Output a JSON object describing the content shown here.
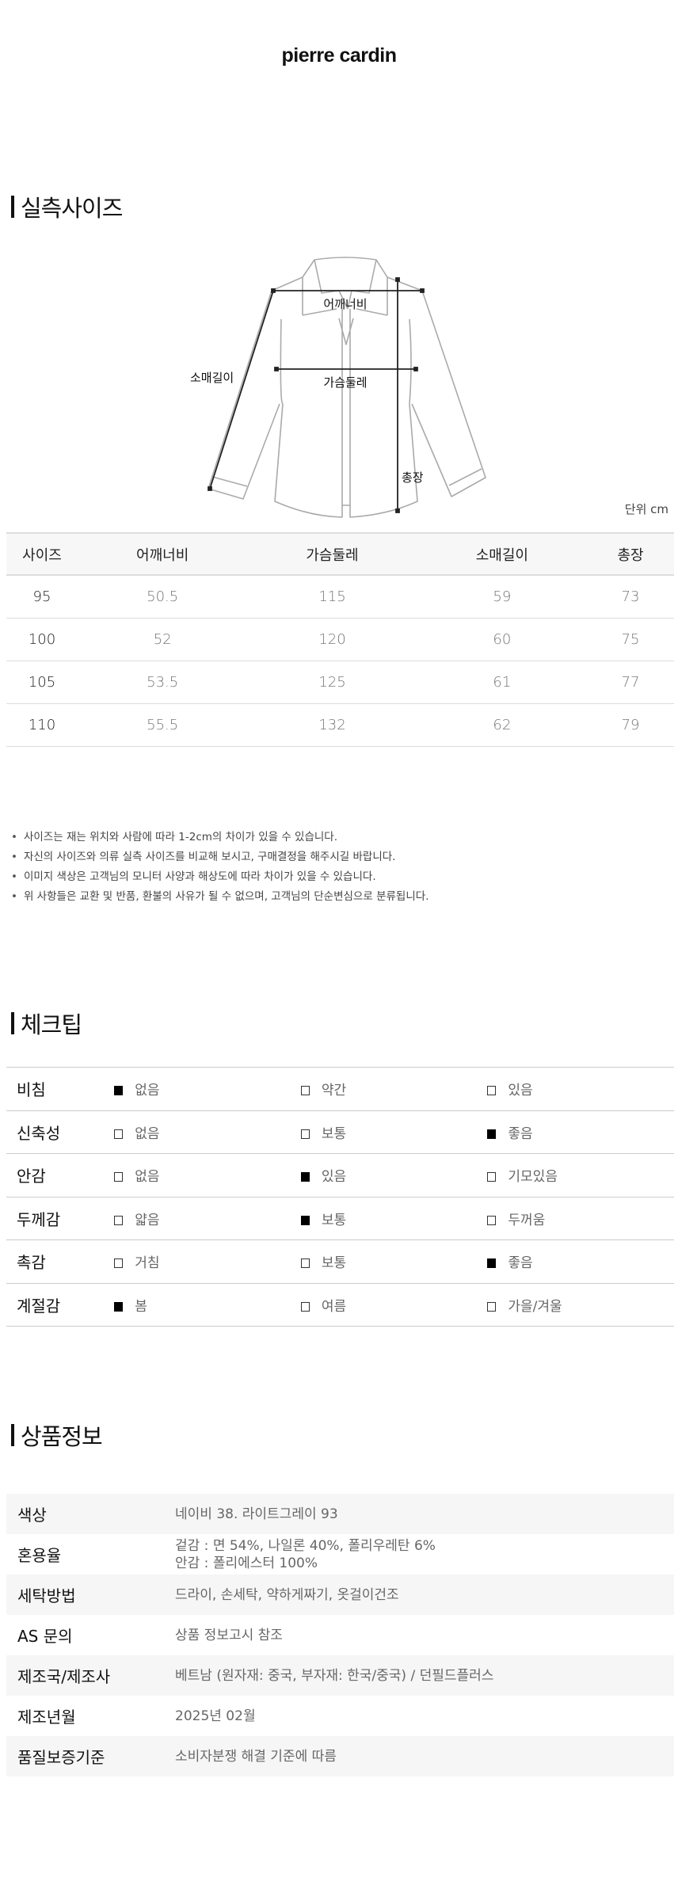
{
  "brand": "pierre cardin",
  "size_section": {
    "title": "실측사이즈",
    "diagram_labels": {
      "shoulder": "어깨너비",
      "chest": "가슴둘레",
      "sleeve": "소매길이",
      "length": "총장"
    },
    "unit": "단위 cm",
    "columns": [
      "사이즈",
      "어깨너비",
      "가슴둘레",
      "소매길이",
      "총장"
    ],
    "rows": [
      [
        "95",
        "50.5",
        "115",
        "59",
        "73"
      ],
      [
        "100",
        "52",
        "120",
        "60",
        "75"
      ],
      [
        "105",
        "53.5",
        "125",
        "61",
        "77"
      ],
      [
        "110",
        "55.5",
        "132",
        "62",
        "79"
      ]
    ],
    "notes": [
      "사이즈는 재는 위치와 사람에 따라 1-2cm의 차이가 있을 수 있습니다.",
      "자신의 사이즈와 의류 실측 사이즈를 비교해 보시고, 구매결정을 해주시길 바랍니다.",
      "이미지 색상은 고객님의 모니터 사양과 해상도에 따라 차이가 있을 수 있습니다.",
      "위 사항들은 교환 및 반품, 환불의 사유가 될 수 없으며, 고객님의 단순변심으로 분류됩니다."
    ]
  },
  "check_tip": {
    "title": "체크팁",
    "rows": [
      {
        "label": "비침",
        "options": [
          "없음",
          "약간",
          "있음"
        ],
        "selected": 0
      },
      {
        "label": "신축성",
        "options": [
          "없음",
          "보통",
          "좋음"
        ],
        "selected": 2
      },
      {
        "label": "안감",
        "options": [
          "없음",
          "있음",
          "기모있음"
        ],
        "selected": 1
      },
      {
        "label": "두께감",
        "options": [
          "얇음",
          "보통",
          "두꺼움"
        ],
        "selected": 1
      },
      {
        "label": "촉감",
        "options": [
          "거침",
          "보통",
          "좋음"
        ],
        "selected": 2
      },
      {
        "label": "계절감",
        "options": [
          "봄",
          "여름",
          "가을/겨울"
        ],
        "selected": 0
      }
    ]
  },
  "product_info": {
    "title": "상품정보",
    "rows": [
      {
        "key": "색상",
        "value": [
          "네이비 38. 라이트그레이 93"
        ]
      },
      {
        "key": "혼용율",
        "value": [
          "겉감 : 면 54%, 나일론 40%, 폴리우레탄 6%",
          "안감 : 폴리에스터 100%"
        ]
      },
      {
        "key": "세탁방법",
        "value": [
          "드라이, 손세탁, 약하게짜기, 옷걸이건조"
        ]
      },
      {
        "key": "AS 문의",
        "value": [
          "상품 정보고시 참조"
        ]
      },
      {
        "key": "제조국/제조사",
        "value": [
          "베트남 (원자재: 중국, 부자재: 한국/중국) / 던필드플러스"
        ]
      },
      {
        "key": "제조년월",
        "value": [
          "2025년 02월"
        ]
      },
      {
        "key": "품질보증기준",
        "value": [
          "소비자분쟁 해결 기준에 따름"
        ]
      }
    ]
  }
}
